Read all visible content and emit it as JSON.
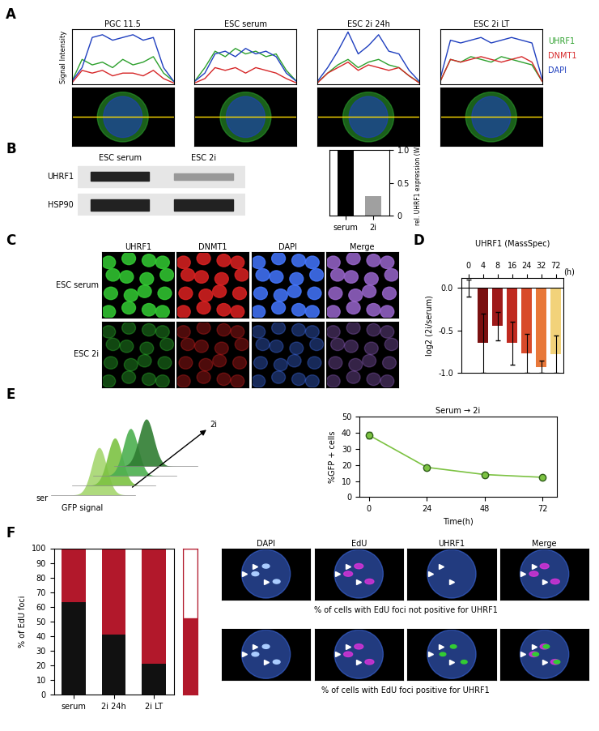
{
  "chart_data": [
    {
      "panel": "A",
      "type": "line",
      "ylabel": "Signal Intensity",
      "tick_labels": false,
      "x": [
        0,
        1,
        2,
        3,
        4,
        5,
        6,
        7,
        8,
        9,
        10
      ],
      "xlim": [
        0,
        10
      ],
      "ylim": [
        0,
        1
      ],
      "subplots": [
        {
          "title": "PGC 11.5",
          "series": [
            {
              "name": "UHRF1",
              "color": "#2ca02c",
              "values": [
                0.05,
                0.45,
                0.35,
                0.4,
                0.3,
                0.45,
                0.35,
                0.4,
                0.5,
                0.2,
                0.05
              ]
            },
            {
              "name": "DNMT1",
              "color": "#d62728",
              "values": [
                0.02,
                0.25,
                0.2,
                0.25,
                0.15,
                0.2,
                0.2,
                0.15,
                0.25,
                0.1,
                0.02
              ]
            },
            {
              "name": "DAPI",
              "color": "#1f3fbf",
              "values": [
                0.05,
                0.3,
                0.85,
                0.9,
                0.8,
                0.85,
                0.9,
                0.8,
                0.85,
                0.3,
                0.05
              ]
            }
          ]
        },
        {
          "title": "ESC serum",
          "series": [
            {
              "name": "UHRF1",
              "color": "#2ca02c",
              "values": [
                0.05,
                0.3,
                0.6,
                0.5,
                0.65,
                0.55,
                0.6,
                0.5,
                0.55,
                0.25,
                0.05
              ]
            },
            {
              "name": "DNMT1",
              "color": "#d62728",
              "values": [
                0.02,
                0.1,
                0.3,
                0.25,
                0.3,
                0.2,
                0.3,
                0.25,
                0.2,
                0.1,
                0.02
              ]
            },
            {
              "name": "DAPI",
              "color": "#1f3fbf",
              "values": [
                0.05,
                0.2,
                0.55,
                0.6,
                0.5,
                0.65,
                0.55,
                0.6,
                0.5,
                0.2,
                0.05
              ]
            }
          ]
        },
        {
          "title": "ESC 2i 24h",
          "series": [
            {
              "name": "UHRF1",
              "color": "#2ca02c",
              "values": [
                0.03,
                0.2,
                0.35,
                0.45,
                0.3,
                0.4,
                0.45,
                0.35,
                0.3,
                0.15,
                0.03
              ]
            },
            {
              "name": "DNMT1",
              "color": "#d62728",
              "values": [
                0.02,
                0.2,
                0.3,
                0.4,
                0.25,
                0.35,
                0.3,
                0.25,
                0.3,
                0.15,
                0.02
              ]
            },
            {
              "name": "DAPI",
              "color": "#1f3fbf",
              "values": [
                0.05,
                0.3,
                0.6,
                0.95,
                0.55,
                0.7,
                0.9,
                0.6,
                0.55,
                0.25,
                0.05
              ]
            }
          ]
        },
        {
          "title": "ESC 2i LT",
          "series": [
            {
              "name": "UHRF1",
              "color": "#2ca02c",
              "values": [
                0.05,
                0.45,
                0.4,
                0.5,
                0.45,
                0.4,
                0.5,
                0.45,
                0.4,
                0.35,
                0.05
              ]
            },
            {
              "name": "DNMT1",
              "color": "#d62728",
              "values": [
                0.05,
                0.45,
                0.4,
                0.45,
                0.5,
                0.45,
                0.4,
                0.45,
                0.5,
                0.4,
                0.05
              ]
            },
            {
              "name": "DAPI",
              "color": "#1f3fbf",
              "values": [
                0.1,
                0.8,
                0.75,
                0.8,
                0.85,
                0.75,
                0.8,
                0.85,
                0.8,
                0.75,
                0.1
              ]
            }
          ]
        }
      ]
    },
    {
      "panel": "B",
      "type": "bar",
      "categories": [
        "serum",
        "2i"
      ],
      "values": [
        1.0,
        0.3
      ],
      "colors": [
        "#000000",
        "#a0a0a0"
      ],
      "ylabel": "rel. UHRF1 expression (WB)",
      "ylim": [
        0,
        1.0
      ],
      "yticks": [
        0,
        0.5,
        1.0
      ]
    },
    {
      "panel": "D",
      "type": "bar",
      "title": "UHRF1 (MassSpec)",
      "categories": [
        "0",
        "4",
        "8",
        "16",
        "24",
        "32",
        "72"
      ],
      "xlabel": "(h)",
      "values": [
        0.0,
        -0.65,
        -0.45,
        -0.65,
        -0.77,
        -0.93,
        -0.78
      ],
      "errors": [
        0.1,
        0.35,
        0.17,
        0.25,
        0.23,
        0.07,
        0.22
      ],
      "colors": [
        "#4a0000",
        "#7a1010",
        "#9e1a1a",
        "#c02a20",
        "#d84a2a",
        "#e8783a",
        "#f2d27a"
      ],
      "ylabel": "log2 (2i/serum)",
      "ylim": [
        -1.0,
        0.12
      ],
      "yticks": [
        -1.0,
        -0.5,
        0.0
      ]
    },
    {
      "panel": "E",
      "type": "line",
      "title": "Serum → 2i",
      "x": [
        0,
        24,
        48,
        72
      ],
      "values": [
        38.5,
        18.5,
        14,
        12.3
      ],
      "errors": [
        2,
        1,
        1.5,
        1.2
      ],
      "xlabel": "Time(h)",
      "ylabel": "%GFP + cells",
      "xlim": [
        -4,
        78
      ],
      "ylim": [
        0,
        50
      ],
      "xticks": [
        0,
        24,
        48,
        72
      ],
      "yticks": [
        0,
        10,
        20,
        30,
        40,
        50
      ],
      "color": "#7cc242",
      "marker": "o"
    },
    {
      "panel": "F",
      "type": "bar",
      "stacked": true,
      "categories": [
        "serum",
        "2i 24h",
        "2i LT"
      ],
      "series": [
        {
          "color": "#111111",
          "values": [
            63,
            41,
            21
          ]
        },
        {
          "color": "#b2182b",
          "values": [
            37,
            59,
            79
          ]
        }
      ],
      "ylabel": "% of EdU foci",
      "ylim": [
        0,
        100
      ],
      "yticks": [
        0,
        10,
        20,
        30,
        40,
        50,
        60,
        70,
        80,
        90,
        100
      ],
      "zoom": {
        "series": [
          {
            "color": "#b2182b",
            "values": [
              52
            ]
          },
          {
            "color": "#ffffff",
            "values": [
              48
            ]
          }
        ]
      }
    }
  ],
  "blot": {
    "lanes": [
      "ESC serum",
      "ESC 2i"
    ],
    "rows": [
      "UHRF1",
      "HSP90"
    ]
  },
  "micrographs": {
    "panel": "C",
    "columns": [
      "UHRF1",
      "DNMT1",
      "DAPI",
      "Merge"
    ],
    "rows": [
      "ESC serum",
      "ESC 2i"
    ]
  },
  "gfp_sketch": {
    "start_label": "ser",
    "end_label": "2i",
    "axis_label": "GFP signal"
  },
  "edu_images": {
    "columns": [
      "DAPI",
      "EdU",
      "UHRF1",
      "Merge"
    ],
    "captions": [
      "% of cells with EdU foci not positive for UHRF1",
      "% of cells with EdU foci positive for UHRF1"
    ]
  }
}
